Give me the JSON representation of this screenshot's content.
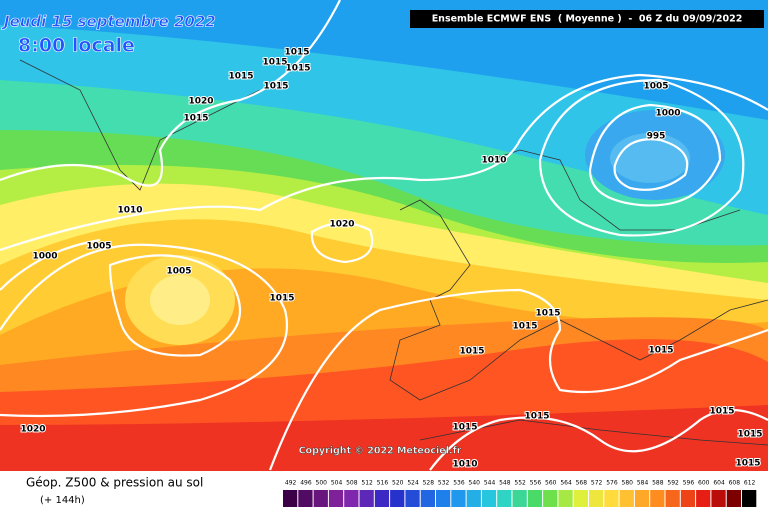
{
  "header": {
    "date": "Jeudi 15 septembre 2022",
    "time": "8:00 locale",
    "run": "Ensemble ECMWF ENS  ( Moyenne )  -  06 Z du 09/09/2022"
  },
  "isobar_labels": [
    "1015",
    "1015",
    "1015",
    "1015",
    "1015",
    "1020",
    "1015",
    "1005",
    "1000",
    "995",
    "1010",
    "1010",
    "1020",
    "1005",
    "1000",
    "1005",
    "1015",
    "1015",
    "1015",
    "1015",
    "1015",
    "1015",
    "1015",
    "1015",
    "1015",
    "1015",
    "1020",
    "1010"
  ],
  "copyright": "Copyright © 2022 Meteociel.fr",
  "footer": {
    "title": "Géop. Z500 & pression au sol",
    "subtitle": "(+ 144h)"
  },
  "scale_labels": [
    "492",
    "496",
    "500",
    "504",
    "508",
    "512",
    "516",
    "520",
    "524",
    "528",
    "532",
    "536",
    "540",
    "544",
    "548",
    "552",
    "556",
    "560",
    "564",
    "568",
    "572",
    "576",
    "580",
    "584",
    "588",
    "592",
    "596",
    "600",
    "604",
    "608",
    "612"
  ]
}
